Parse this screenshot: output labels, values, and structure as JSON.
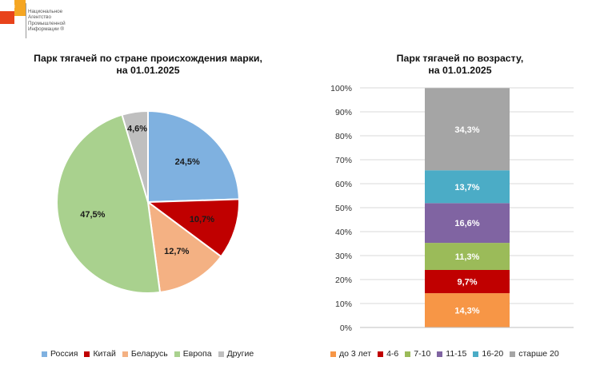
{
  "logo": {
    "tag": "НАПИ",
    "lines": [
      "Национальное",
      "Агентство",
      "Промышленной",
      "Информации ®"
    ]
  },
  "chart_data": [
    {
      "type": "pie",
      "title_lines": [
        "Парк тягачей по стране происхождения марки,",
        "на 01.01.2025"
      ],
      "categories": [
        "Россия",
        "Китай",
        "Беларусь",
        "Европа",
        "Другие"
      ],
      "values": [
        24.5,
        10.7,
        12.7,
        47.5,
        4.6
      ],
      "labels": [
        "24,5%",
        "10,7%",
        "12,7%",
        "47,5%",
        "4,6%"
      ],
      "colors": [
        "#7fb1e0",
        "#c00000",
        "#f4b183",
        "#a9d18e",
        "#bfbfbf"
      ],
      "legend": "bottom"
    },
    {
      "type": "bar",
      "stacked": true,
      "title_lines": [
        "Парк тягачей по возрасту,",
        "на 01.01.2025"
      ],
      "series": [
        {
          "name": "до 3 лет",
          "value": 14.3,
          "label": "14,3%",
          "color": "#f79646"
        },
        {
          "name": "4-6",
          "value": 9.7,
          "label": "9,7%",
          "color": "#c00000"
        },
        {
          "name": "7-10",
          "value": 11.3,
          "label": "11,3%",
          "color": "#9bbb59"
        },
        {
          "name": "11-15",
          "value": 16.6,
          "label": "16,6%",
          "color": "#8064a2"
        },
        {
          "name": "16-20",
          "value": 13.7,
          "label": "13,7%",
          "color": "#4bacc6"
        },
        {
          "name": "старше 20",
          "value": 34.3,
          "label": "34,3%",
          "color": "#a5a5a5"
        }
      ],
      "y_ticks": [
        "0%",
        "10%",
        "20%",
        "30%",
        "40%",
        "50%",
        "60%",
        "70%",
        "80%",
        "90%",
        "100%"
      ],
      "ylim": [
        0,
        100
      ],
      "grid": true,
      "legend": "bottom"
    }
  ]
}
